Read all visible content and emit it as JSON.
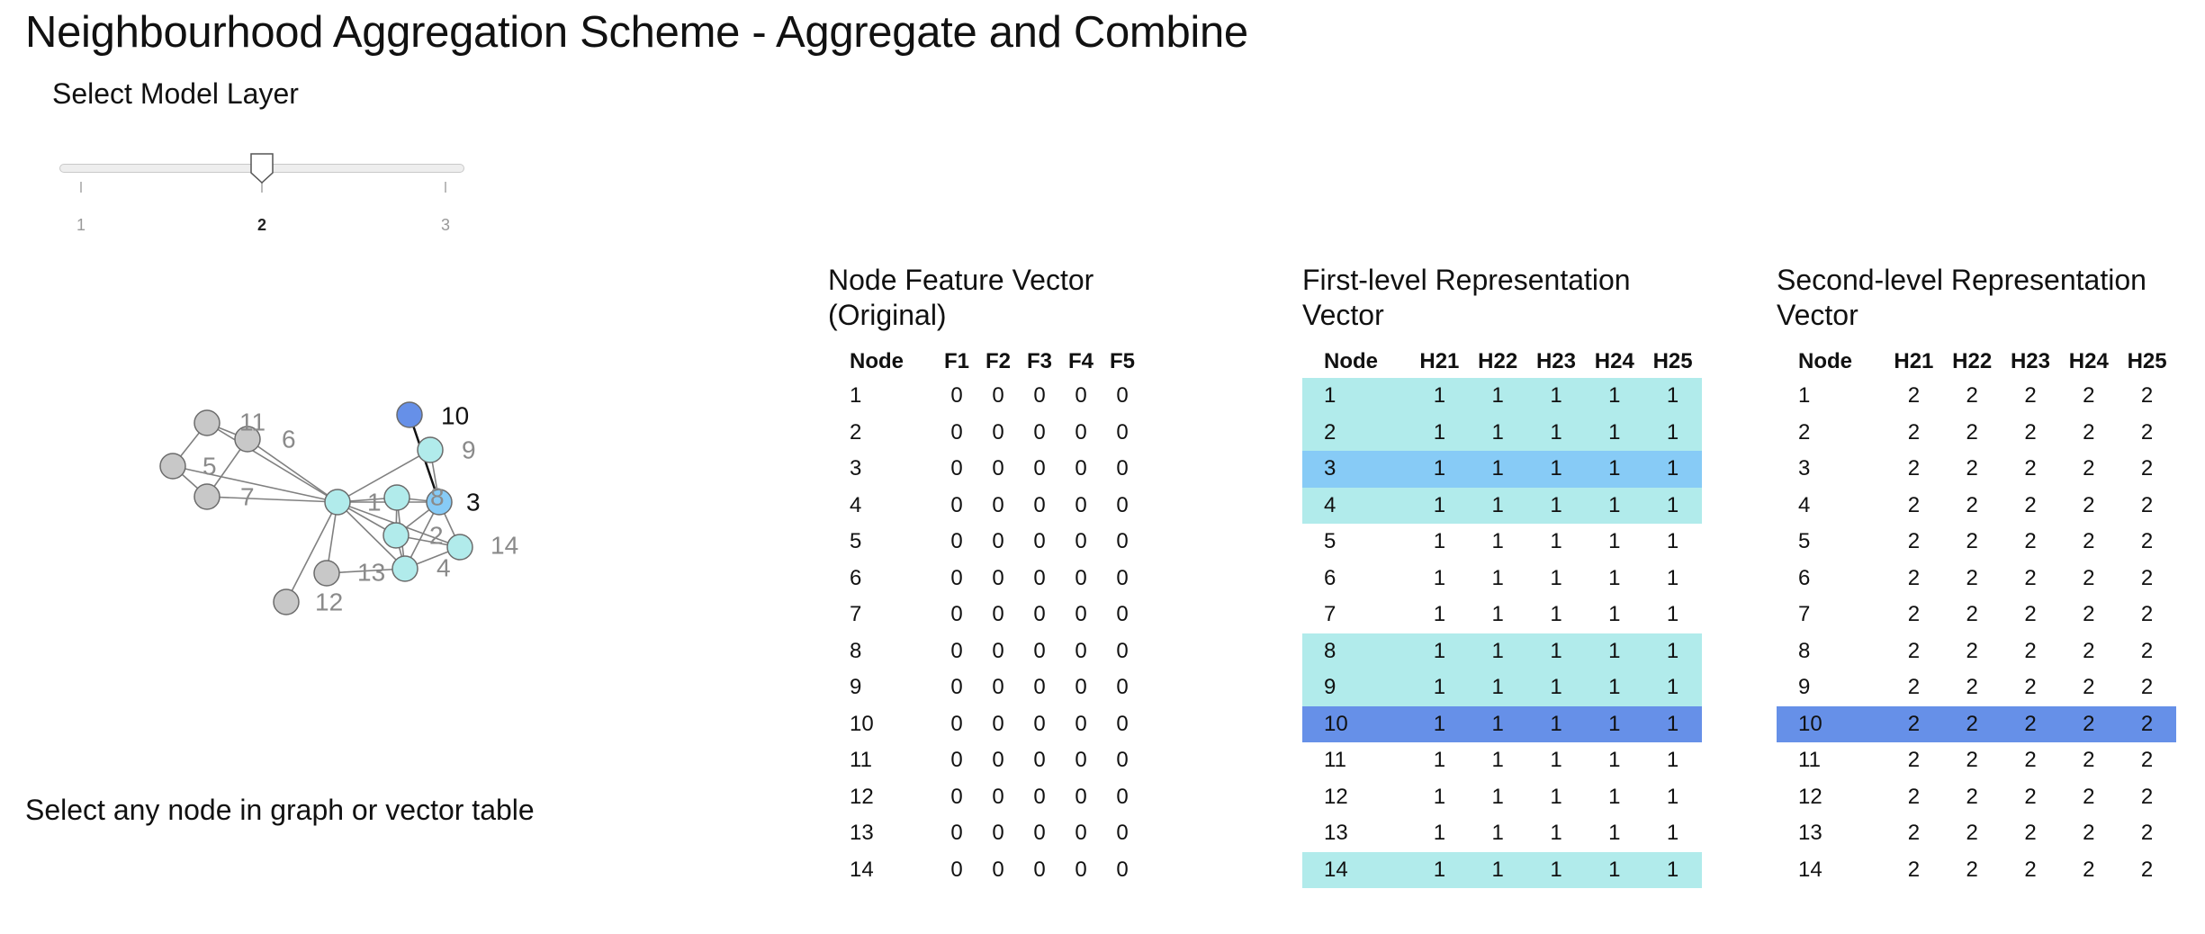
{
  "title": "Neighbourhood Aggregation Scheme - Aggregate and Combine",
  "slider": {
    "label": "Select Model Layer",
    "ticks": [
      "1",
      "2",
      "3"
    ],
    "value": "2"
  },
  "instruction": "Select any node in graph or vector table",
  "colors": {
    "selected": "#6690e8",
    "mid": "#87cbf6",
    "neighbor": "#b1ebeb",
    "inactive": "#c8c8c8",
    "labelGray": "#8a8a8a"
  },
  "graph": {
    "nodes": [
      {
        "id": "1",
        "state": "neighbor"
      },
      {
        "id": "2",
        "state": "neighbor"
      },
      {
        "id": "3",
        "state": "mid"
      },
      {
        "id": "4",
        "state": "neighbor"
      },
      {
        "id": "5",
        "state": "inactive"
      },
      {
        "id": "6",
        "state": "inactive"
      },
      {
        "id": "7",
        "state": "inactive"
      },
      {
        "id": "8",
        "state": "neighbor"
      },
      {
        "id": "9",
        "state": "neighbor"
      },
      {
        "id": "10",
        "state": "selected"
      },
      {
        "id": "11",
        "state": "inactive"
      },
      {
        "id": "12",
        "state": "inactive"
      },
      {
        "id": "13",
        "state": "inactive"
      },
      {
        "id": "14",
        "state": "neighbor"
      }
    ],
    "edges": [
      [
        "11",
        "5"
      ],
      [
        "11",
        "6"
      ],
      [
        "11",
        "1"
      ],
      [
        "6",
        "7"
      ],
      [
        "6",
        "1"
      ],
      [
        "5",
        "7"
      ],
      [
        "5",
        "1"
      ],
      [
        "7",
        "1"
      ],
      [
        "1",
        "8"
      ],
      [
        "1",
        "3"
      ],
      [
        "1",
        "9"
      ],
      [
        "1",
        "2"
      ],
      [
        "1",
        "4"
      ],
      [
        "1",
        "14"
      ],
      [
        "1",
        "12"
      ],
      [
        "1",
        "13"
      ],
      [
        "8",
        "3"
      ],
      [
        "8",
        "2"
      ],
      [
        "8",
        "4"
      ],
      [
        "3",
        "2"
      ],
      [
        "3",
        "4"
      ],
      [
        "3",
        "14"
      ],
      [
        "9",
        "3"
      ],
      [
        "2",
        "4"
      ],
      [
        "2",
        "14"
      ],
      [
        "4",
        "13"
      ],
      [
        "4",
        "14"
      ],
      [
        "10",
        "3"
      ]
    ],
    "highlighted_edge": [
      "10",
      "3"
    ]
  },
  "tables": [
    {
      "title": "Node Feature Vector (Original)",
      "columns": [
        "Node",
        "F1",
        "F2",
        "F3",
        "F4",
        "F5"
      ],
      "rows": [
        {
          "node": "1",
          "values": [
            "0",
            "0",
            "0",
            "0",
            "0"
          ],
          "state": ""
        },
        {
          "node": "2",
          "values": [
            "0",
            "0",
            "0",
            "0",
            "0"
          ],
          "state": ""
        },
        {
          "node": "3",
          "values": [
            "0",
            "0",
            "0",
            "0",
            "0"
          ],
          "state": ""
        },
        {
          "node": "4",
          "values": [
            "0",
            "0",
            "0",
            "0",
            "0"
          ],
          "state": ""
        },
        {
          "node": "5",
          "values": [
            "0",
            "0",
            "0",
            "0",
            "0"
          ],
          "state": ""
        },
        {
          "node": "6",
          "values": [
            "0",
            "0",
            "0",
            "0",
            "0"
          ],
          "state": ""
        },
        {
          "node": "7",
          "values": [
            "0",
            "0",
            "0",
            "0",
            "0"
          ],
          "state": ""
        },
        {
          "node": "8",
          "values": [
            "0",
            "0",
            "0",
            "0",
            "0"
          ],
          "state": ""
        },
        {
          "node": "9",
          "values": [
            "0",
            "0",
            "0",
            "0",
            "0"
          ],
          "state": ""
        },
        {
          "node": "10",
          "values": [
            "0",
            "0",
            "0",
            "0",
            "0"
          ],
          "state": ""
        },
        {
          "node": "11",
          "values": [
            "0",
            "0",
            "0",
            "0",
            "0"
          ],
          "state": ""
        },
        {
          "node": "12",
          "values": [
            "0",
            "0",
            "0",
            "0",
            "0"
          ],
          "state": ""
        },
        {
          "node": "13",
          "values": [
            "0",
            "0",
            "0",
            "0",
            "0"
          ],
          "state": ""
        },
        {
          "node": "14",
          "values": [
            "0",
            "0",
            "0",
            "0",
            "0"
          ],
          "state": ""
        }
      ]
    },
    {
      "title": "First-level Representation Vector",
      "columns": [
        "Node",
        "H21",
        "H22",
        "H23",
        "H24",
        "H25"
      ],
      "rows": [
        {
          "node": "1",
          "values": [
            "1",
            "1",
            "1",
            "1",
            "1"
          ],
          "state": "neighbor"
        },
        {
          "node": "2",
          "values": [
            "1",
            "1",
            "1",
            "1",
            "1"
          ],
          "state": "neighbor"
        },
        {
          "node": "3",
          "values": [
            "1",
            "1",
            "1",
            "1",
            "1"
          ],
          "state": "mid"
        },
        {
          "node": "4",
          "values": [
            "1",
            "1",
            "1",
            "1",
            "1"
          ],
          "state": "neighbor"
        },
        {
          "node": "5",
          "values": [
            "1",
            "1",
            "1",
            "1",
            "1"
          ],
          "state": ""
        },
        {
          "node": "6",
          "values": [
            "1",
            "1",
            "1",
            "1",
            "1"
          ],
          "state": ""
        },
        {
          "node": "7",
          "values": [
            "1",
            "1",
            "1",
            "1",
            "1"
          ],
          "state": ""
        },
        {
          "node": "8",
          "values": [
            "1",
            "1",
            "1",
            "1",
            "1"
          ],
          "state": "neighbor"
        },
        {
          "node": "9",
          "values": [
            "1",
            "1",
            "1",
            "1",
            "1"
          ],
          "state": "neighbor"
        },
        {
          "node": "10",
          "values": [
            "1",
            "1",
            "1",
            "1",
            "1"
          ],
          "state": "selected"
        },
        {
          "node": "11",
          "values": [
            "1",
            "1",
            "1",
            "1",
            "1"
          ],
          "state": ""
        },
        {
          "node": "12",
          "values": [
            "1",
            "1",
            "1",
            "1",
            "1"
          ],
          "state": ""
        },
        {
          "node": "13",
          "values": [
            "1",
            "1",
            "1",
            "1",
            "1"
          ],
          "state": ""
        },
        {
          "node": "14",
          "values": [
            "1",
            "1",
            "1",
            "1",
            "1"
          ],
          "state": "neighbor"
        }
      ]
    },
    {
      "title": "Second-level Representation Vector",
      "columns": [
        "Node",
        "H21",
        "H22",
        "H23",
        "H24",
        "H25"
      ],
      "rows": [
        {
          "node": "1",
          "values": [
            "2",
            "2",
            "2",
            "2",
            "2"
          ],
          "state": ""
        },
        {
          "node": "2",
          "values": [
            "2",
            "2",
            "2",
            "2",
            "2"
          ],
          "state": ""
        },
        {
          "node": "3",
          "values": [
            "2",
            "2",
            "2",
            "2",
            "2"
          ],
          "state": ""
        },
        {
          "node": "4",
          "values": [
            "2",
            "2",
            "2",
            "2",
            "2"
          ],
          "state": ""
        },
        {
          "node": "5",
          "values": [
            "2",
            "2",
            "2",
            "2",
            "2"
          ],
          "state": ""
        },
        {
          "node": "6",
          "values": [
            "2",
            "2",
            "2",
            "2",
            "2"
          ],
          "state": ""
        },
        {
          "node": "7",
          "values": [
            "2",
            "2",
            "2",
            "2",
            "2"
          ],
          "state": ""
        },
        {
          "node": "8",
          "values": [
            "2",
            "2",
            "2",
            "2",
            "2"
          ],
          "state": ""
        },
        {
          "node": "9",
          "values": [
            "2",
            "2",
            "2",
            "2",
            "2"
          ],
          "state": ""
        },
        {
          "node": "10",
          "values": [
            "2",
            "2",
            "2",
            "2",
            "2"
          ],
          "state": "selected"
        },
        {
          "node": "11",
          "values": [
            "2",
            "2",
            "2",
            "2",
            "2"
          ],
          "state": ""
        },
        {
          "node": "12",
          "values": [
            "2",
            "2",
            "2",
            "2",
            "2"
          ],
          "state": ""
        },
        {
          "node": "13",
          "values": [
            "2",
            "2",
            "2",
            "2",
            "2"
          ],
          "state": ""
        },
        {
          "node": "14",
          "values": [
            "2",
            "2",
            "2",
            "2",
            "2"
          ],
          "state": ""
        }
      ]
    }
  ]
}
